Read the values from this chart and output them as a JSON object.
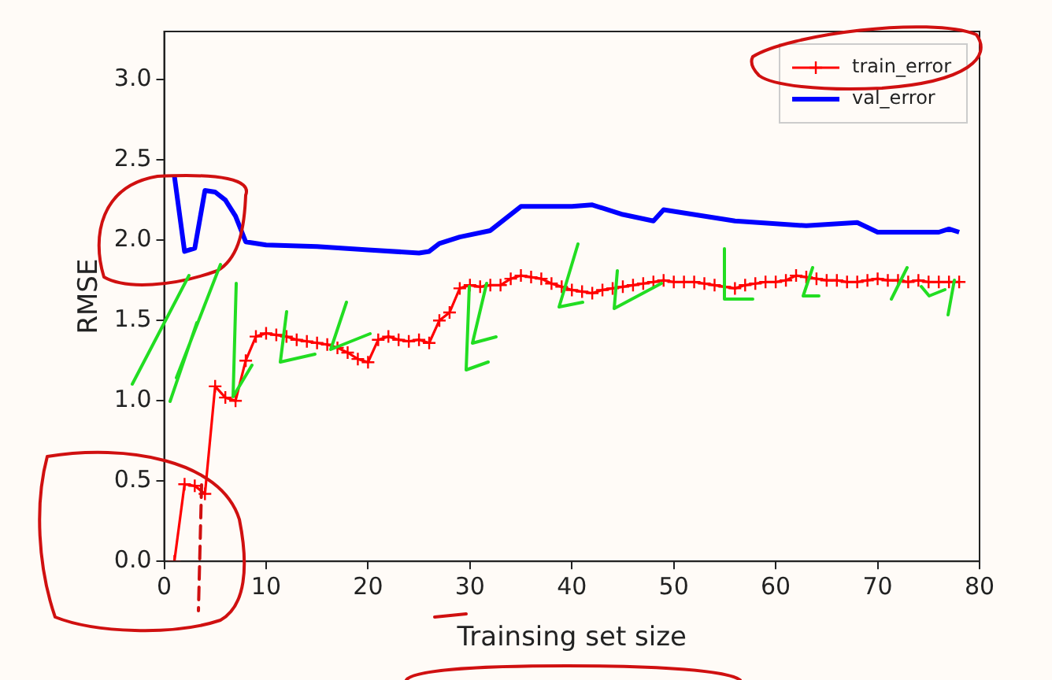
{
  "chart_data": {
    "type": "line",
    "xlabel": "Trainsing set size",
    "ylabel": "RMSE",
    "xlim": [
      0,
      80
    ],
    "xticks": [
      0,
      10,
      20,
      30,
      40,
      50,
      60,
      70,
      80
    ],
    "ylim": [
      0,
      3.3
    ],
    "yticks": [
      {
        "value": 0,
        "label": "0.0"
      },
      {
        "value": 0.5,
        "label": "0.5"
      },
      {
        "value": 1,
        "label": "1.0"
      },
      {
        "value": 1.5,
        "label": "1.5"
      },
      {
        "value": 2,
        "label": "2.0"
      },
      {
        "value": 2.5,
        "label": "2.5"
      },
      {
        "value": 3,
        "label": "3.0"
      }
    ],
    "grid": false,
    "legend": "top right",
    "series": [
      {
        "name": "train_error",
        "color": "#ff0000",
        "marker": "cross",
        "x": [
          1,
          2,
          3,
          4,
          5,
          6,
          7,
          8,
          9,
          10,
          11,
          12,
          13,
          14,
          15,
          16,
          17,
          18,
          19,
          20,
          21,
          22,
          23,
          24,
          25,
          26,
          27,
          28,
          29,
          30,
          31,
          32,
          33,
          34,
          35,
          36,
          37,
          38,
          39,
          40,
          41,
          42,
          43,
          44,
          45,
          46,
          47,
          48,
          49,
          50,
          51,
          52,
          53,
          54,
          55,
          56,
          57,
          58,
          59,
          60,
          61,
          62,
          63,
          64,
          65,
          66,
          67,
          68,
          69,
          70,
          71,
          72,
          73,
          74,
          75,
          76,
          77,
          78
        ],
        "values": [
          0,
          0.48,
          0.47,
          0.42,
          1.09,
          1.02,
          1.0,
          1.25,
          1.4,
          1.42,
          1.41,
          1.4,
          1.38,
          1.37,
          1.36,
          1.35,
          1.33,
          1.3,
          1.26,
          1.24,
          1.38,
          1.4,
          1.38,
          1.37,
          1.38,
          1.36,
          1.5,
          1.55,
          1.7,
          1.72,
          1.71,
          1.72,
          1.72,
          1.76,
          1.78,
          1.77,
          1.76,
          1.73,
          1.71,
          1.69,
          1.68,
          1.67,
          1.69,
          1.7,
          1.71,
          1.72,
          1.73,
          1.74,
          1.75,
          1.74,
          1.74,
          1.74,
          1.73,
          1.72,
          1.71,
          1.7,
          1.72,
          1.73,
          1.74,
          1.74,
          1.75,
          1.78,
          1.77,
          1.76,
          1.75,
          1.75,
          1.74,
          1.74,
          1.75,
          1.76,
          1.75,
          1.75,
          1.74,
          1.75,
          1.74,
          1.74,
          1.74,
          1.74
        ]
      },
      {
        "name": "val_error",
        "color": "#0000ff",
        "marker": "none",
        "x": [
          1,
          2,
          3,
          4,
          5,
          6,
          7,
          8,
          10,
          15,
          20,
          25,
          26,
          27,
          29,
          32,
          35,
          40,
          42,
          45,
          48,
          49,
          56,
          63,
          68,
          70,
          76,
          77,
          78
        ],
        "values": [
          2.4,
          1.93,
          1.95,
          2.31,
          2.3,
          2.25,
          2.15,
          1.99,
          1.97,
          1.96,
          1.94,
          1.92,
          1.93,
          1.98,
          2.02,
          2.06,
          2.21,
          2.21,
          2.22,
          2.16,
          2.12,
          2.19,
          2.12,
          2.09,
          2.11,
          2.05,
          2.05,
          2.07,
          2.05
        ]
      }
    ]
  }
}
